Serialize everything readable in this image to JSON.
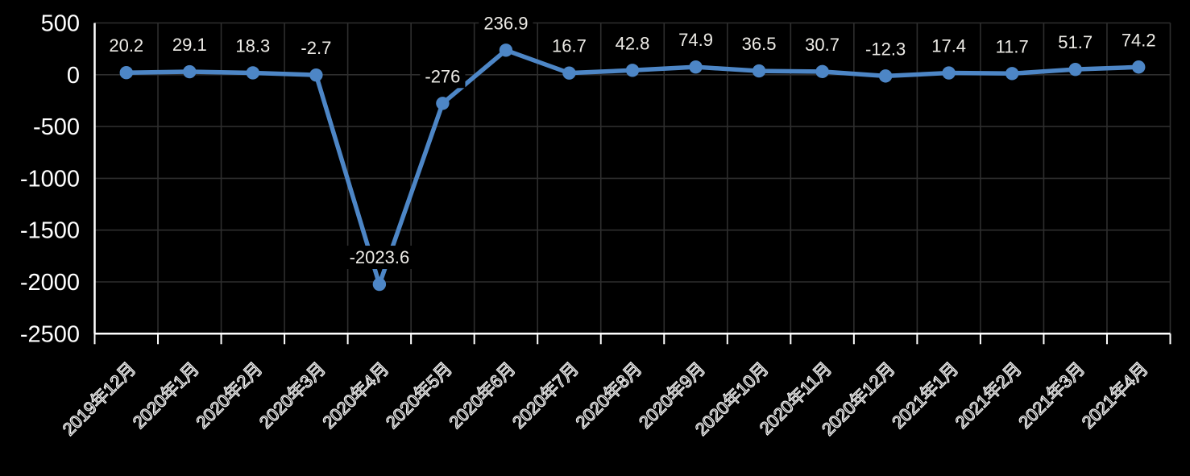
{
  "chart_data": {
    "type": "line",
    "title": "",
    "categories": [
      "2019年12月",
      "2020年1月",
      "2020年2月",
      "2020年3月",
      "2020年4月",
      "2020年5月",
      "2020年6月",
      "2020年7月",
      "2020年8月",
      "2020年9月",
      "2020年10月",
      "2020年11月",
      "2020年12月",
      "2021年1月",
      "2021年2月",
      "2021年3月",
      "2021年4月"
    ],
    "series": [
      {
        "name": "series-1",
        "values": [
          20.2,
          29.1,
          18.3,
          -2.7,
          -2023.6,
          -276,
          236.9,
          16.7,
          42.8,
          74.9,
          36.5,
          30.7,
          -12.3,
          17.4,
          11.7,
          51.7,
          74.2
        ],
        "data_labels": [
          "20.2",
          "29.1",
          "18.3",
          "-2.7",
          "-2023.6",
          "-276",
          "236.9",
          "16.7",
          "42.8",
          "74.9",
          "36.5",
          "30.7",
          "-12.3",
          "17.4",
          "11.7",
          "51.7",
          "74.2"
        ],
        "color": "#4d86c6"
      }
    ],
    "xlabel": "",
    "ylabel": "",
    "ylim": [
      -2500,
      500
    ],
    "ytick_step": 500,
    "ytick_labels": [
      "500",
      "0",
      "-500",
      "-1000",
      "-1500",
      "-2000",
      "-2500"
    ],
    "grid": true,
    "legend_position": "none",
    "x_label_rotation": -45,
    "x_label_style": "outline",
    "colors": {
      "background": "#000000",
      "axis": "#ffffff",
      "gridline": "#2e2e2e",
      "data_label": "#edebe6",
      "ytick_label": "#ffffff",
      "xtick_label_stroke": "#f2f2f2"
    },
    "markers": true
  }
}
